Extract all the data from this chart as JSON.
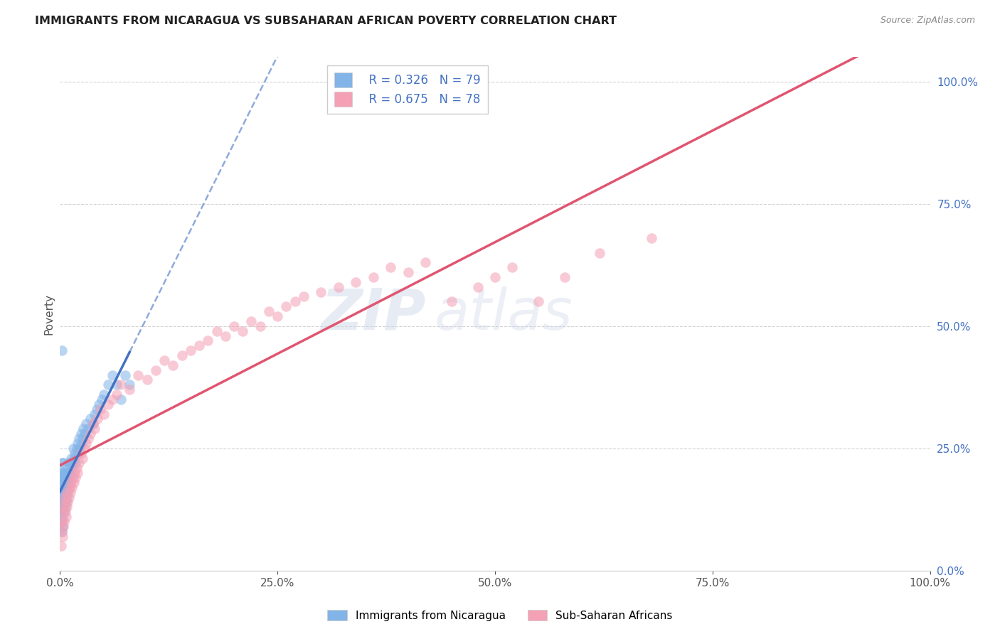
{
  "title": "IMMIGRANTS FROM NICARAGUA VS SUBSAHARAN AFRICAN POVERTY CORRELATION CHART",
  "source": "Source: ZipAtlas.com",
  "ylabel": "Poverty",
  "r_nicaragua": 0.326,
  "n_nicaragua": 79,
  "r_subsaharan": 0.675,
  "n_subsaharan": 78,
  "color_nicaragua": "#82B4E8",
  "color_subsaharan": "#F4A0B5",
  "color_trendline_nicaragua": "#4472C4",
  "color_trendline_subsaharan": "#E05570",
  "watermark_zip": "ZIP",
  "watermark_atlas": "atlas",
  "nicaragua_x": [
    0.001,
    0.001,
    0.001,
    0.001,
    0.002,
    0.002,
    0.002,
    0.002,
    0.002,
    0.002,
    0.002,
    0.003,
    0.003,
    0.003,
    0.003,
    0.003,
    0.003,
    0.004,
    0.004,
    0.004,
    0.004,
    0.004,
    0.005,
    0.005,
    0.005,
    0.005,
    0.006,
    0.006,
    0.006,
    0.006,
    0.007,
    0.007,
    0.007,
    0.008,
    0.008,
    0.008,
    0.009,
    0.009,
    0.01,
    0.01,
    0.01,
    0.011,
    0.011,
    0.012,
    0.012,
    0.013,
    0.013,
    0.014,
    0.015,
    0.015,
    0.016,
    0.017,
    0.018,
    0.019,
    0.02,
    0.021,
    0.022,
    0.023,
    0.024,
    0.025,
    0.026,
    0.027,
    0.028,
    0.03,
    0.032,
    0.035,
    0.038,
    0.04,
    0.042,
    0.045,
    0.048,
    0.05,
    0.055,
    0.06,
    0.065,
    0.07,
    0.075,
    0.08,
    0.002
  ],
  "nicaragua_y": [
    0.18,
    0.2,
    0.15,
    0.12,
    0.16,
    0.14,
    0.18,
    0.2,
    0.22,
    0.1,
    0.08,
    0.13,
    0.15,
    0.17,
    0.19,
    0.11,
    0.09,
    0.14,
    0.16,
    0.18,
    0.2,
    0.22,
    0.12,
    0.15,
    0.17,
    0.19,
    0.13,
    0.16,
    0.18,
    0.2,
    0.14,
    0.17,
    0.19,
    0.15,
    0.18,
    0.2,
    0.16,
    0.19,
    0.17,
    0.2,
    0.22,
    0.18,
    0.21,
    0.19,
    0.22,
    0.2,
    0.23,
    0.21,
    0.22,
    0.25,
    0.23,
    0.24,
    0.22,
    0.25,
    0.26,
    0.24,
    0.27,
    0.25,
    0.28,
    0.26,
    0.27,
    0.29,
    0.28,
    0.3,
    0.29,
    0.31,
    0.3,
    0.32,
    0.33,
    0.34,
    0.35,
    0.36,
    0.38,
    0.4,
    0.38,
    0.35,
    0.4,
    0.38,
    0.45
  ],
  "subsaharan_x": [
    0.001,
    0.002,
    0.002,
    0.003,
    0.003,
    0.004,
    0.004,
    0.005,
    0.005,
    0.006,
    0.006,
    0.007,
    0.008,
    0.008,
    0.009,
    0.01,
    0.011,
    0.012,
    0.013,
    0.014,
    0.015,
    0.016,
    0.017,
    0.018,
    0.019,
    0.02,
    0.022,
    0.024,
    0.026,
    0.028,
    0.03,
    0.032,
    0.035,
    0.038,
    0.04,
    0.043,
    0.046,
    0.05,
    0.055,
    0.06,
    0.065,
    0.07,
    0.08,
    0.09,
    0.1,
    0.11,
    0.12,
    0.13,
    0.14,
    0.15,
    0.16,
    0.17,
    0.18,
    0.19,
    0.2,
    0.21,
    0.22,
    0.23,
    0.24,
    0.25,
    0.26,
    0.27,
    0.28,
    0.3,
    0.32,
    0.34,
    0.36,
    0.38,
    0.4,
    0.42,
    0.45,
    0.48,
    0.5,
    0.52,
    0.55,
    0.58,
    0.62,
    0.68
  ],
  "subsaharan_y": [
    0.05,
    0.08,
    0.1,
    0.07,
    0.12,
    0.09,
    0.13,
    0.1,
    0.15,
    0.12,
    0.14,
    0.11,
    0.13,
    0.16,
    0.14,
    0.15,
    0.17,
    0.16,
    0.18,
    0.17,
    0.19,
    0.18,
    0.2,
    0.19,
    0.21,
    0.2,
    0.22,
    0.24,
    0.23,
    0.25,
    0.26,
    0.27,
    0.28,
    0.3,
    0.29,
    0.31,
    0.33,
    0.32,
    0.34,
    0.35,
    0.36,
    0.38,
    0.37,
    0.4,
    0.39,
    0.41,
    0.43,
    0.42,
    0.44,
    0.45,
    0.46,
    0.47,
    0.49,
    0.48,
    0.5,
    0.49,
    0.51,
    0.5,
    0.53,
    0.52,
    0.54,
    0.55,
    0.56,
    0.57,
    0.58,
    0.59,
    0.6,
    0.62,
    0.61,
    0.63,
    0.55,
    0.58,
    0.6,
    0.62,
    0.55,
    0.6,
    0.65,
    0.68
  ],
  "xlim": [
    0.0,
    1.0
  ],
  "ylim": [
    0.0,
    1.05
  ],
  "xticks": [
    0.0,
    0.25,
    0.5,
    0.75,
    1.0
  ],
  "yticks_right": [
    0.0,
    0.25,
    0.5,
    0.75,
    1.0
  ]
}
